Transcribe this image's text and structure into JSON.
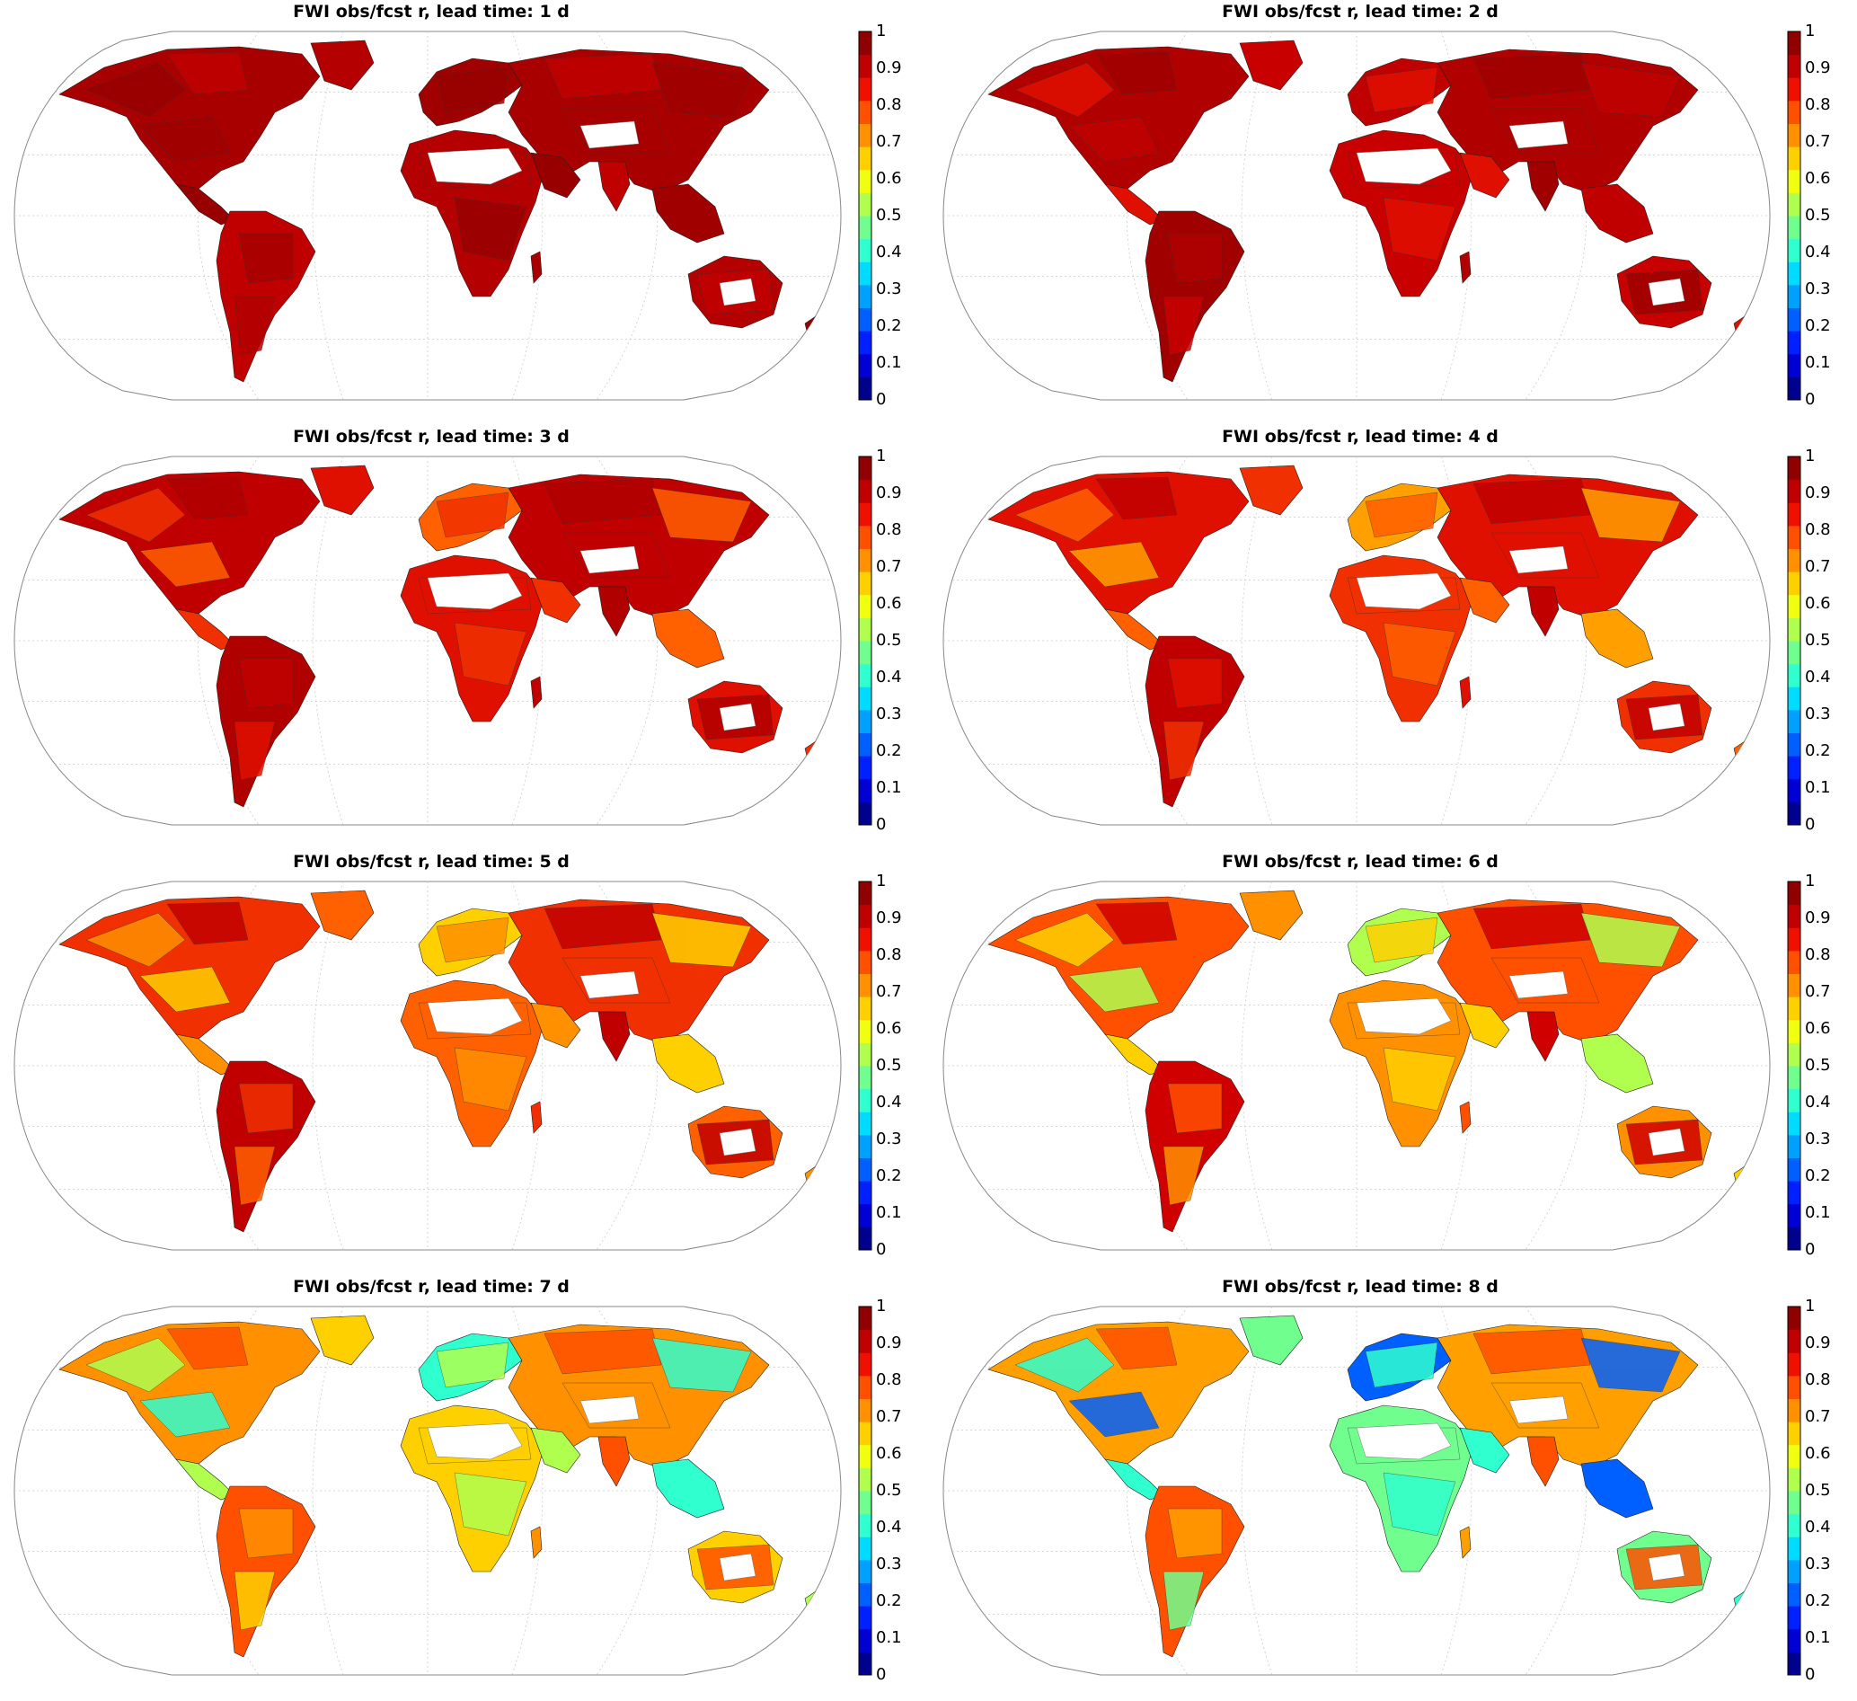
{
  "colorbar": {
    "ticks": [
      "0",
      "0.1",
      "0.2",
      "0.3",
      "0.4",
      "0.5",
      "0.6",
      "0.7",
      "0.8",
      "0.9",
      "1"
    ],
    "colors": [
      "#00008f",
      "#0000d4",
      "#0020ff",
      "#0060ff",
      "#00a0ff",
      "#00dcff",
      "#30ffcf",
      "#70ff8f",
      "#b0ff4f",
      "#f0ff0f",
      "#ffd000",
      "#ff9000",
      "#ff5000",
      "#f01000",
      "#c00000",
      "#900000"
    ]
  },
  "panels": [
    {
      "title": "FWI obs/fcst r, lead time: 1 d",
      "lead_time_days": 1,
      "palette": [
        "#a80000",
        "#b40000",
        "#980000",
        "#c00000",
        "#a00000"
      ]
    },
    {
      "title": "FWI obs/fcst r, lead time: 2 d",
      "lead_time_days": 2,
      "palette": [
        "#b00000",
        "#c80000",
        "#e01000",
        "#a00000",
        "#c00000"
      ]
    },
    {
      "title": "FWI obs/fcst r, lead time: 3 d",
      "lead_time_days": 3,
      "palette": [
        "#c00000",
        "#e01000",
        "#f03000",
        "#b00000",
        "#ff6000"
      ]
    },
    {
      "title": "FWI obs/fcst r, lead time: 4 d",
      "lead_time_days": 4,
      "palette": [
        "#e01000",
        "#f03000",
        "#ff6000",
        "#c00000",
        "#ffa000"
      ]
    },
    {
      "title": "FWI obs/fcst r, lead time: 5 d",
      "lead_time_days": 5,
      "palette": [
        "#f03000",
        "#ff6000",
        "#ff9000",
        "#c00000",
        "#ffd000"
      ]
    },
    {
      "title": "FWI obs/fcst r, lead time: 6 d",
      "lead_time_days": 6,
      "palette": [
        "#ff5000",
        "#ff9000",
        "#ffd000",
        "#d00000",
        "#b0ff4f"
      ]
    },
    {
      "title": "FWI obs/fcst r, lead time: 7 d",
      "lead_time_days": 7,
      "palette": [
        "#ff9000",
        "#ffd000",
        "#b0ff4f",
        "#ff5000",
        "#30ffcf"
      ]
    },
    {
      "title": "FWI obs/fcst r, lead time: 8 d",
      "lead_time_days": 8,
      "palette": [
        "#ffa000",
        "#70ff8f",
        "#30ffcf",
        "#ff5000",
        "#0060ff"
      ]
    }
  ]
}
